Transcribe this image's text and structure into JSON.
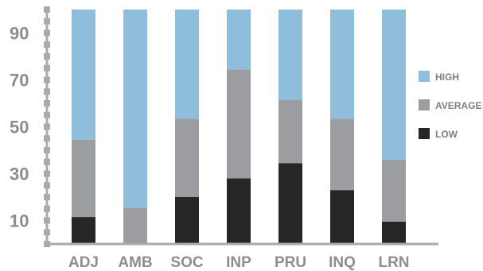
{
  "chart_data": {
    "type": "bar",
    "stacked": true,
    "categories": [
      "ADJ",
      "AMB",
      "SOC",
      "INP",
      "PRU",
      "INQ",
      "LRN"
    ],
    "series": [
      {
        "name": "LOW",
        "values": [
          11.5,
          0,
          20,
          28,
          34.5,
          23,
          9.5
        ],
        "color": "#262626"
      },
      {
        "name": "AVERAGE",
        "values": [
          33,
          15.5,
          33.5,
          46.5,
          27,
          30.5,
          26.5
        ],
        "color": "#9b9da0"
      },
      {
        "name": "HIGH",
        "values": [
          55.5,
          84.5,
          46.5,
          25.5,
          38.5,
          46.5,
          64
        ],
        "color": "#8ebedb"
      }
    ],
    "y_ticks": [
      10,
      30,
      50,
      70,
      90
    ],
    "ylim": [
      0,
      100
    ],
    "legend_position": "right",
    "grid": false
  }
}
